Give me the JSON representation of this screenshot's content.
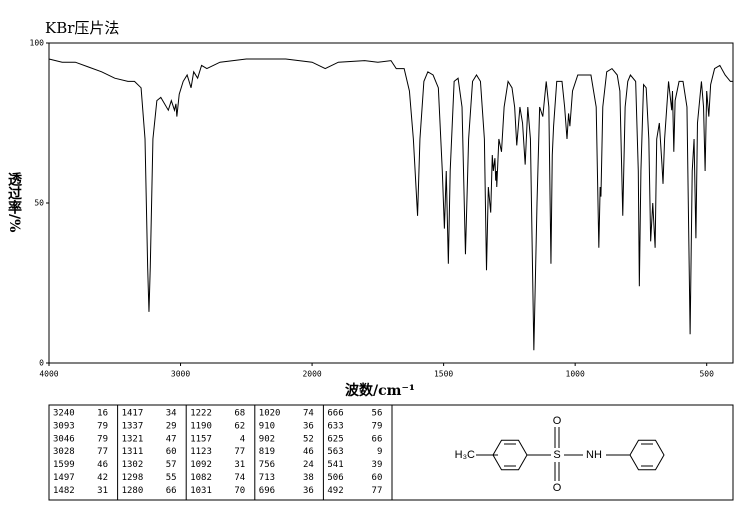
{
  "chart_data": {
    "type": "line",
    "title": "KBr压片法",
    "x_label": "波数/cm⁻¹",
    "y_label": "透过率/%",
    "xlim": [
      4000,
      400
    ],
    "xticks": [
      4000,
      3000,
      2000,
      1500,
      1000,
      500
    ],
    "ylim": [
      0,
      100
    ],
    "yticks": [
      0,
      50,
      100
    ],
    "x": [
      4000,
      3900,
      3800,
      3700,
      3600,
      3500,
      3400,
      3350,
      3300,
      3270,
      3250,
      3240,
      3230,
      3210,
      3180,
      3150,
      3093,
      3070,
      3046,
      3035,
      3028,
      3010,
      2980,
      2950,
      2920,
      2900,
      2870,
      2840,
      2800,
      2700,
      2600,
      2500,
      2400,
      2300,
      2200,
      2100,
      2000,
      1950,
      1900,
      1800,
      1750,
      1700,
      1680,
      1650,
      1630,
      1615,
      1599,
      1590,
      1575,
      1560,
      1540,
      1520,
      1505,
      1497,
      1490,
      1482,
      1475,
      1460,
      1445,
      1430,
      1417,
      1405,
      1390,
      1375,
      1360,
      1345,
      1337,
      1330,
      1321,
      1315,
      1311,
      1305,
      1302,
      1299,
      1298,
      1290,
      1280,
      1270,
      1255,
      1240,
      1230,
      1222,
      1210,
      1200,
      1190,
      1180,
      1170,
      1157,
      1145,
      1135,
      1123,
      1110,
      1100,
      1092,
      1087,
      1082,
      1070,
      1050,
      1040,
      1031,
      1025,
      1020,
      1010,
      990,
      960,
      940,
      920,
      910,
      905,
      902,
      895,
      880,
      860,
      840,
      830,
      819,
      810,
      800,
      790,
      770,
      760,
      756,
      750,
      740,
      730,
      720,
      713,
      705,
      696,
      690,
      680,
      670,
      666,
      660,
      645,
      633,
      630,
      625,
      620,
      605,
      590,
      575,
      563,
      555,
      548,
      541,
      535,
      520,
      512,
      506,
      500,
      492,
      485,
      470,
      450,
      430,
      410,
      400
    ],
    "series": [
      {
        "color": "#000000",
        "values": [
          95,
          94,
          94,
          92.5,
          91,
          89,
          88,
          88,
          86,
          70,
          30,
          16,
          30,
          70,
          82,
          83,
          79,
          82,
          79,
          81,
          77,
          84,
          88,
          90,
          86,
          91,
          89,
          93,
          92,
          94,
          94.5,
          95,
          95,
          95,
          95,
          94.5,
          94,
          92,
          94,
          94.5,
          94,
          94.5,
          92,
          92,
          85,
          70,
          46,
          70,
          88,
          91,
          90,
          86,
          60,
          42,
          60,
          31,
          60,
          88,
          89,
          80,
          34,
          70,
          88,
          90,
          88,
          70,
          29,
          55,
          47,
          65,
          60,
          64,
          57,
          60,
          55,
          70,
          66,
          80,
          88,
          86,
          80,
          68,
          80,
          75,
          62,
          80,
          70,
          4,
          50,
          80,
          77,
          88,
          80,
          31,
          65,
          74,
          88,
          88,
          80,
          70,
          78,
          74,
          85,
          90,
          90,
          90,
          80,
          36,
          55,
          52,
          80,
          91,
          92,
          90,
          85,
          46,
          80,
          88,
          90,
          88,
          60,
          24,
          60,
          87,
          86,
          70,
          38,
          50,
          36,
          70,
          75,
          62,
          56,
          70,
          88,
          79,
          85,
          66,
          82,
          88,
          88,
          80,
          9,
          60,
          70,
          39,
          75,
          88,
          80,
          60,
          85,
          77,
          87,
          92,
          93,
          90,
          88,
          88
        ]
      }
    ]
  },
  "peak_table": [
    [
      3240,
      16
    ],
    [
      3093,
      79
    ],
    [
      3046,
      79
    ],
    [
      3028,
      77
    ],
    [
      1599,
      46
    ],
    [
      1497,
      42
    ],
    [
      1482,
      31
    ],
    [
      1417,
      34
    ],
    [
      1337,
      29
    ],
    [
      1321,
      47
    ],
    [
      1311,
      60
    ],
    [
      1302,
      57
    ],
    [
      1298,
      55
    ],
    [
      1280,
      66
    ],
    [
      1222,
      68
    ],
    [
      1190,
      62
    ],
    [
      1157,
      4
    ],
    [
      1123,
      77
    ],
    [
      1092,
      31
    ],
    [
      1082,
      74
    ],
    [
      1031,
      70
    ],
    [
      1020,
      74
    ],
    [
      910,
      36
    ],
    [
      902,
      52
    ],
    [
      819,
      46
    ],
    [
      756,
      24
    ],
    [
      713,
      38
    ],
    [
      696,
      36
    ],
    [
      666,
      56
    ],
    [
      633,
      79
    ],
    [
      625,
      66
    ],
    [
      563,
      9
    ],
    [
      541,
      39
    ],
    [
      506,
      60
    ],
    [
      492,
      77
    ]
  ],
  "structure": {
    "methyl": "H₃C",
    "sulfur": "S",
    "oxygen_top": "O",
    "oxygen_bottom": "O",
    "amine": "NH"
  }
}
